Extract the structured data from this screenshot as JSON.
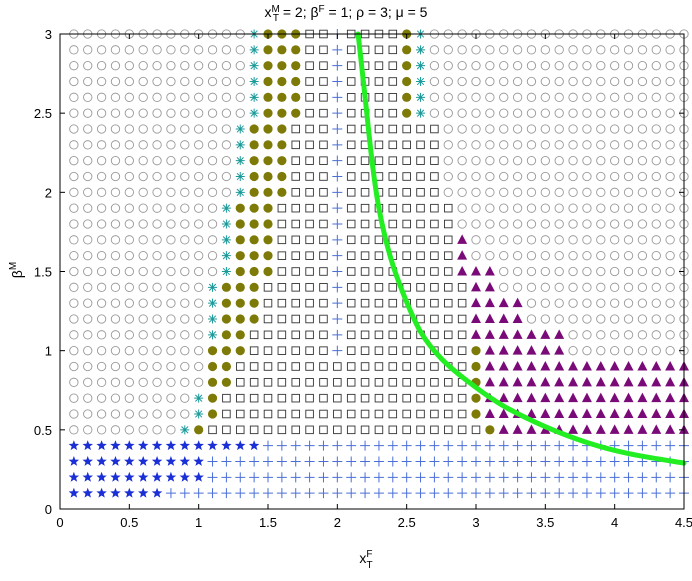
{
  "chart_data": {
    "type": "scatter",
    "title_parts": {
      "x": "x",
      "x_sup": "M",
      "x_sub": "T",
      "mid1": " = 2; ",
      "b": "β",
      "b_sup": "F",
      "mid2": " = 1; ρ = 3; μ = 5"
    },
    "xlabel": {
      "base": "x",
      "sup": "F",
      "sub": "T"
    },
    "ylabel": {
      "base": "β",
      "sup": "M"
    },
    "xlim": [
      0,
      4.5
    ],
    "ylim": [
      0,
      3
    ],
    "xticks": [
      "0",
      "0.5",
      "1",
      "1.5",
      "2",
      "2.5",
      "3",
      "3.5",
      "4",
      "4.5"
    ],
    "yticks": [
      "0",
      "0.5",
      "1",
      "1.5",
      "2",
      "2.5",
      "3"
    ],
    "grid": false,
    "grid_points": {
      "x_start": 0.1,
      "x_step": 0.1,
      "x_count": 45,
      "y_start": 0.1,
      "y_step": 0.1,
      "y_count": 30
    },
    "region_rules": {
      "low_beta": {
        "star_y_max": 0.4,
        "star_x_max_by_y": {
          "0.1": 0.7,
          "0.2": 1.0,
          "0.3": 1.0,
          "0.4": 1.4
        }
      },
      "star_x_min_by_y": [
        [
          2.5,
          1.35
        ],
        [
          2.0,
          1.3
        ],
        [
          1.5,
          1.2
        ],
        [
          1.1,
          1.1
        ],
        [
          0.8,
          1.05
        ],
        [
          0.6,
          1.0
        ],
        [
          0.5,
          0.9
        ]
      ],
      "circle_x_max_by_y": [
        [
          2.5,
          1.75
        ],
        [
          2.0,
          1.6
        ],
        [
          1.5,
          1.5
        ],
        [
          1.2,
          1.4
        ],
        [
          1.0,
          1.3
        ],
        [
          0.8,
          1.2
        ],
        [
          0.6,
          1.1
        ],
        [
          0.5,
          1.0
        ]
      ],
      "square_x_max_by_y": [
        [
          2.5,
          2.45
        ],
        [
          2.0,
          2.75
        ],
        [
          1.5,
          2.85
        ],
        [
          1.1,
          2.9
        ],
        [
          0.9,
          2.9
        ],
        [
          0.6,
          2.95
        ],
        [
          0.5,
          3.0
        ]
      ],
      "dot_x_max_by_y": [
        [
          2.5,
          2.55
        ],
        [
          2.0,
          2.75
        ],
        [
          1.5,
          2.85
        ],
        [
          1.1,
          2.9
        ],
        [
          0.9,
          3.0
        ],
        [
          0.6,
          3.05
        ],
        [
          0.5,
          3.15
        ]
      ],
      "triangle_x_max": 4.5
    },
    "series": [
      {
        "marker": "circle-open",
        "color": "#999999"
      },
      {
        "marker": "asterisk",
        "color": "#1b9a9a"
      },
      {
        "marker": "circle-filled",
        "color": "#7d7a07"
      },
      {
        "marker": "square-open",
        "color": "#333333"
      },
      {
        "marker": "plus",
        "color": "#4a6fd8"
      },
      {
        "marker": "star",
        "color": "#1a2fd6"
      },
      {
        "marker": "triangle",
        "color": "#7a0a78"
      }
    ],
    "curve": {
      "color": "#22ee22",
      "points": [
        [
          2.15,
          3.0
        ],
        [
          2.2,
          2.6
        ],
        [
          2.25,
          2.2
        ],
        [
          2.3,
          1.9
        ],
        [
          2.38,
          1.6
        ],
        [
          2.48,
          1.35
        ],
        [
          2.6,
          1.12
        ],
        [
          2.75,
          0.95
        ],
        [
          2.95,
          0.8
        ],
        [
          3.2,
          0.65
        ],
        [
          3.5,
          0.52
        ],
        [
          3.8,
          0.42
        ],
        [
          4.1,
          0.35
        ],
        [
          4.5,
          0.29
        ]
      ]
    }
  }
}
